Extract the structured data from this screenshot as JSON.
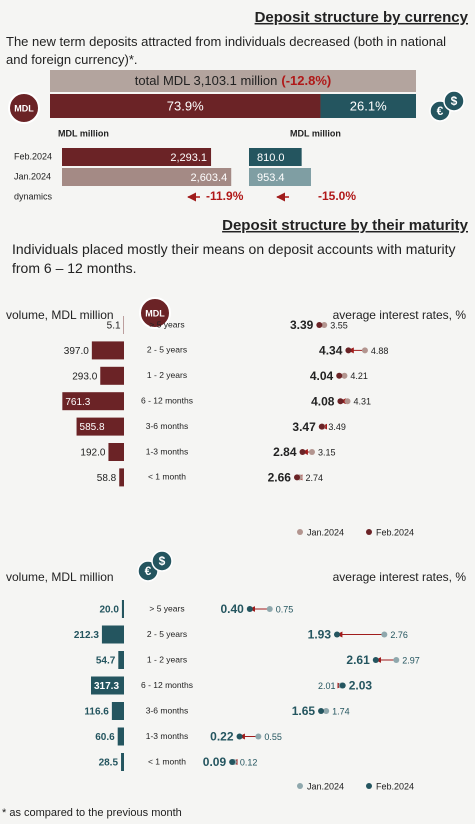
{
  "header": {
    "title": "Deposit structure by currency",
    "intro": "The new term deposits attracted from individuals decreased (both in national and foreign currency)*."
  },
  "total": {
    "label": "total MDL 3,103.1 million",
    "change": "(-12.8%)",
    "color": "#b3a49e",
    "change_color": "#b01818"
  },
  "shares": {
    "values": [
      73.9,
      26.1
    ],
    "value_labels": [
      "73.9%",
      "26.1%"
    ],
    "colors": [
      "#6b2326",
      "#24555f"
    ]
  },
  "icons": {
    "mdl": "MDL",
    "fx": [
      "€",
      "$"
    ]
  },
  "currency": {
    "unit_labels": [
      "MDL million",
      "MDL million"
    ],
    "periods": [
      "Feb.2024",
      "Jan.2024"
    ],
    "dynamics_label": "dynamics",
    "dynamics_color": "#b01818",
    "series": [
      {
        "values": [
          2293.1,
          2603.4
        ],
        "value_labels": [
          "2,293.1",
          "2,603.4"
        ],
        "colors": [
          "#6b2326",
          "#a48a85"
        ],
        "dynamics": "-11.9%"
      },
      {
        "values": [
          810.0,
          953.4
        ],
        "value_labels": [
          "810.0",
          "953.4"
        ],
        "colors": [
          "#24555f",
          "#7f9ea3"
        ],
        "dynamics": "-15.0%"
      }
    ]
  },
  "maturity": {
    "title": "Deposit structure by their maturity",
    "intro": "Individuals placed mostly their means on deposit accounts with maturity from 6 – 12 months.",
    "categories": [
      "> 5 years",
      "2 - 5 years",
      "1 - 2 years",
      "6 - 12 months",
      "3-6 months",
      "1-3 months",
      "< 1 month"
    ],
    "legend": [
      "Jan.2024",
      "Feb.2024"
    ],
    "panels": [
      {
        "volume_label": "volume, MDL million",
        "rates_label": "average interest rates, %",
        "volume": {
          "values": [
            5.1,
            397.0,
            293.0,
            761.3,
            585.8,
            192.0,
            58.8
          ],
          "value_labels": [
            "5.1",
            "397.0",
            "293.0",
            "761.3",
            "585.8",
            "192.0",
            "58.8"
          ]
        },
        "rates_jan": {
          "values": [
            3.55,
            4.88,
            4.21,
            4.31,
            3.49,
            3.15,
            2.74
          ]
        },
        "rates_feb": {
          "values": [
            3.39,
            4.34,
            4.04,
            4.08,
            3.47,
            2.84,
            2.66
          ]
        },
        "colors": {
          "dark": "#6b2326",
          "light": "#b3958f",
          "arrow": "#a01c1c"
        }
      },
      {
        "volume_label": "volume, MDL million",
        "rates_label": "average interest rates, %",
        "volume": {
          "values": [
            20.0,
            212.3,
            54.7,
            317.3,
            116.6,
            60.6,
            28.5
          ],
          "value_labels": [
            "20.0",
            "212.3",
            "54.7",
            "317.3",
            "116.6",
            "60.6",
            "28.5"
          ]
        },
        "rates_jan": {
          "values": [
            0.75,
            2.76,
            2.97,
            2.01,
            1.74,
            0.55,
            0.12
          ]
        },
        "rates_feb": {
          "values": [
            0.4,
            1.93,
            2.61,
            2.03,
            1.65,
            0.22,
            0.09
          ],
          "value_labels": [
            "0.40",
            "1.93",
            "2.61",
            "2.03",
            "1.65",
            "0.22",
            "0.09"
          ]
        },
        "colors": {
          "dark": "#24555f",
          "light": "#8fa8ad",
          "arrow": "#a01c1c"
        }
      }
    ]
  },
  "footnote": "* as compared to the previous month"
}
